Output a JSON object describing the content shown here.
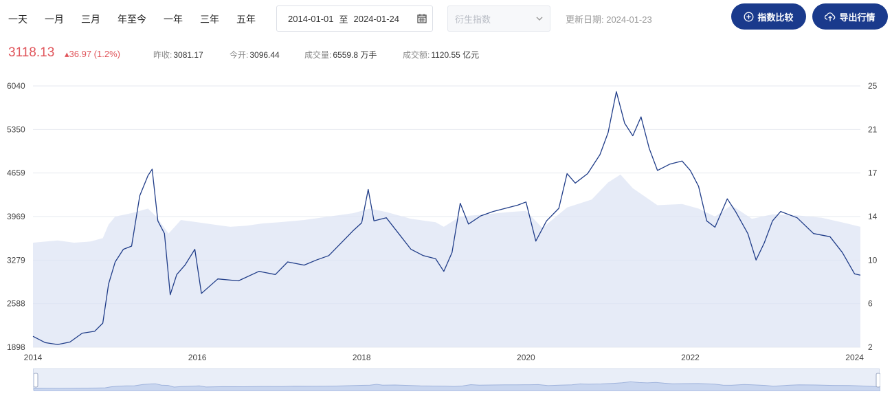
{
  "toolbar": {
    "periods": [
      "一天",
      "一月",
      "三月",
      "年至今",
      "一年",
      "三年",
      "五年"
    ],
    "date_start": "2014-01-01",
    "date_sep": "至",
    "date_end": "2024-01-24",
    "calendar_icon": "calendar-icon",
    "index_placeholder": "衍生指数",
    "update_label": "更新日期: 2024-01-23",
    "compare_label": "指数比较",
    "export_label": "导出行情"
  },
  "quote": {
    "price": "3118.13",
    "change": "▴36.97 (1.2%)",
    "prev_close_label": "昨收:",
    "prev_close": "3081.17",
    "open_label": "今开:",
    "open": "3096.44",
    "volume_label": "成交量:",
    "volume": "6559.8 万手",
    "amount_label": "成交额:",
    "amount": "1120.55 亿元"
  },
  "colors": {
    "accent": "#1a3a8c",
    "up": "#e0555b",
    "line": "#1f3c88",
    "area": "#dde4f4"
  },
  "chart_data": {
    "type": "line",
    "x_ticks": [
      "2014",
      "2016",
      "2018",
      "2020",
      "2022",
      "2024"
    ],
    "y_left_ticks": [
      "6040",
      "5350",
      "4659",
      "3969",
      "3279",
      "2588",
      "1898"
    ],
    "y_right_ticks": [
      "25",
      "21",
      "17",
      "14",
      "10",
      "6",
      "2"
    ],
    "ylim_left": [
      1898,
      6040
    ],
    "ylim_right": [
      2,
      25
    ],
    "xlim": [
      2014.0,
      2024.07
    ],
    "grid": true,
    "series": [
      {
        "axis": "left",
        "kind": "line",
        "points": [
          [
            2014.0,
            2070
          ],
          [
            2014.15,
            1970
          ],
          [
            2014.3,
            1940
          ],
          [
            2014.45,
            1980
          ],
          [
            2014.6,
            2120
          ],
          [
            2014.75,
            2150
          ],
          [
            2014.85,
            2280
          ],
          [
            2014.92,
            2900
          ],
          [
            2015.0,
            3250
          ],
          [
            2015.1,
            3450
          ],
          [
            2015.2,
            3500
          ],
          [
            2015.3,
            4300
          ],
          [
            2015.4,
            4620
          ],
          [
            2015.45,
            4720
          ],
          [
            2015.52,
            3900
          ],
          [
            2015.6,
            3700
          ],
          [
            2015.67,
            2730
          ],
          [
            2015.75,
            3050
          ],
          [
            2015.85,
            3200
          ],
          [
            2015.97,
            3450
          ],
          [
            2016.05,
            2750
          ],
          [
            2016.25,
            2980
          ],
          [
            2016.5,
            2950
          ],
          [
            2016.75,
            3100
          ],
          [
            2016.95,
            3050
          ],
          [
            2017.1,
            3250
          ],
          [
            2017.3,
            3200
          ],
          [
            2017.45,
            3280
          ],
          [
            2017.6,
            3350
          ],
          [
            2017.75,
            3550
          ],
          [
            2017.9,
            3750
          ],
          [
            2018.0,
            3870
          ],
          [
            2018.08,
            4400
          ],
          [
            2018.15,
            3900
          ],
          [
            2018.3,
            3950
          ],
          [
            2018.45,
            3700
          ],
          [
            2018.6,
            3450
          ],
          [
            2018.75,
            3350
          ],
          [
            2018.9,
            3300
          ],
          [
            2019.0,
            3100
          ],
          [
            2019.1,
            3400
          ],
          [
            2019.2,
            4180
          ],
          [
            2019.3,
            3850
          ],
          [
            2019.45,
            3980
          ],
          [
            2019.6,
            4050
          ],
          [
            2019.75,
            4100
          ],
          [
            2019.9,
            4150
          ],
          [
            2020.0,
            4200
          ],
          [
            2020.12,
            3580
          ],
          [
            2020.25,
            3900
          ],
          [
            2020.4,
            4100
          ],
          [
            2020.5,
            4650
          ],
          [
            2020.6,
            4500
          ],
          [
            2020.75,
            4650
          ],
          [
            2020.9,
            4950
          ],
          [
            2021.0,
            5300
          ],
          [
            2021.1,
            5950
          ],
          [
            2021.2,
            5450
          ],
          [
            2021.3,
            5250
          ],
          [
            2021.4,
            5550
          ],
          [
            2021.5,
            5050
          ],
          [
            2021.6,
            4700
          ],
          [
            2021.75,
            4800
          ],
          [
            2021.9,
            4850
          ],
          [
            2022.0,
            4700
          ],
          [
            2022.1,
            4450
          ],
          [
            2022.2,
            3900
          ],
          [
            2022.3,
            3800
          ],
          [
            2022.45,
            4250
          ],
          [
            2022.55,
            4050
          ],
          [
            2022.7,
            3700
          ],
          [
            2022.8,
            3280
          ],
          [
            2022.9,
            3550
          ],
          [
            2023.0,
            3900
          ],
          [
            2023.1,
            4050
          ],
          [
            2023.3,
            3950
          ],
          [
            2023.5,
            3700
          ],
          [
            2023.7,
            3650
          ],
          [
            2023.85,
            3400
          ],
          [
            2024.0,
            3060
          ],
          [
            2024.07,
            3040
          ]
        ]
      },
      {
        "axis": "right",
        "kind": "area",
        "points": [
          [
            2014.0,
            11.2
          ],
          [
            2014.3,
            11.4
          ],
          [
            2014.5,
            11.2
          ],
          [
            2014.7,
            11.3
          ],
          [
            2014.85,
            11.6
          ],
          [
            2014.92,
            12.8
          ],
          [
            2015.0,
            13.5
          ],
          [
            2015.2,
            13.8
          ],
          [
            2015.4,
            14.2
          ],
          [
            2015.5,
            13.5
          ],
          [
            2015.65,
            12.0
          ],
          [
            2015.8,
            13.2
          ],
          [
            2016.0,
            13.0
          ],
          [
            2016.2,
            12.8
          ],
          [
            2016.4,
            12.6
          ],
          [
            2016.6,
            12.7
          ],
          [
            2016.8,
            12.9
          ],
          [
            2017.0,
            13.0
          ],
          [
            2017.3,
            13.2
          ],
          [
            2017.6,
            13.5
          ],
          [
            2017.9,
            13.8
          ],
          [
            2018.1,
            14.2
          ],
          [
            2018.3,
            13.9
          ],
          [
            2018.6,
            13.3
          ],
          [
            2018.9,
            13.0
          ],
          [
            2019.0,
            12.6
          ],
          [
            2019.2,
            13.5
          ],
          [
            2019.5,
            13.7
          ],
          [
            2019.8,
            13.9
          ],
          [
            2020.0,
            14.0
          ],
          [
            2020.2,
            12.5
          ],
          [
            2020.5,
            14.3
          ],
          [
            2020.8,
            15.0
          ],
          [
            2021.0,
            16.5
          ],
          [
            2021.15,
            17.2
          ],
          [
            2021.3,
            16.0
          ],
          [
            2021.6,
            14.5
          ],
          [
            2021.9,
            14.6
          ],
          [
            2022.1,
            14.2
          ],
          [
            2022.3,
            13.5
          ],
          [
            2022.5,
            14.5
          ],
          [
            2022.75,
            13.3
          ],
          [
            2023.0,
            13.7
          ],
          [
            2023.3,
            13.6
          ],
          [
            2023.6,
            13.4
          ],
          [
            2023.9,
            12.9
          ],
          [
            2024.07,
            12.6
          ]
        ]
      }
    ]
  }
}
